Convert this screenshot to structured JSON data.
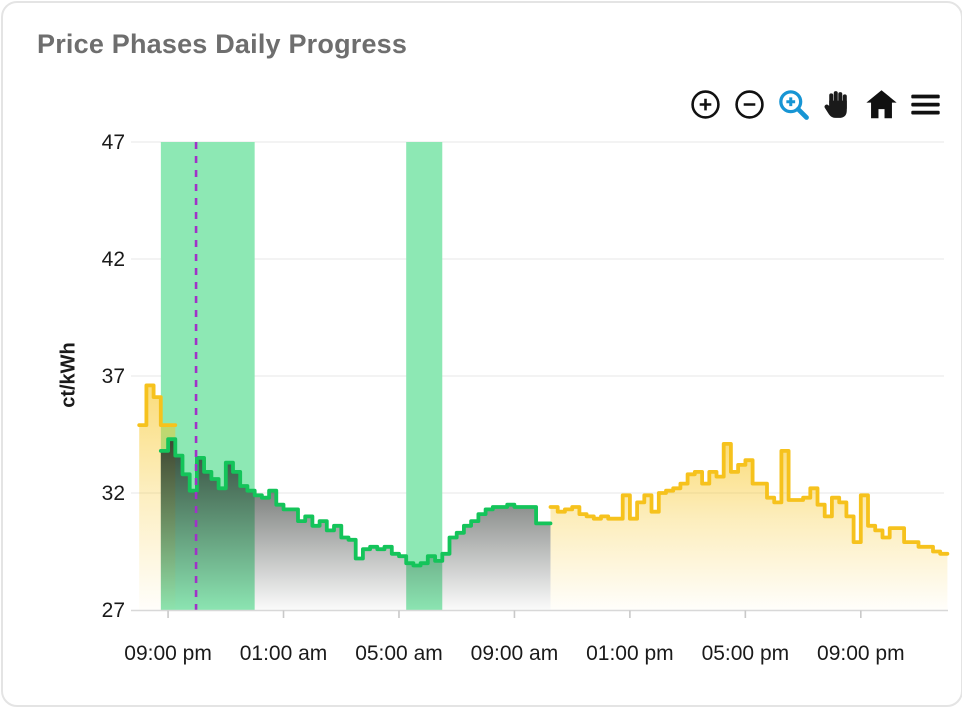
{
  "card": {
    "title": "Price Phases Daily Progress"
  },
  "toolbar": {
    "icon_color": "#111111",
    "active_color": "#1795d4",
    "items": [
      {
        "name": "zoom-in-icon"
      },
      {
        "name": "zoom-out-icon"
      },
      {
        "name": "box-zoom-icon",
        "active": true
      },
      {
        "name": "pan-hand-icon"
      },
      {
        "name": "home-reset-icon"
      },
      {
        "name": "menu-icon"
      }
    ]
  },
  "chart_data": {
    "type": "area",
    "title": "Price Phases Daily Progress",
    "xlabel": "",
    "ylabel": "ct/kWh",
    "ylim": [
      27,
      47
    ],
    "yticks": [
      27,
      32,
      37,
      42,
      47
    ],
    "x_range_hours": [
      0,
      28
    ],
    "x_start_time": "20:00",
    "step_minutes": 15,
    "grid": true,
    "xticks": [
      {
        "label": "09:00 pm",
        "hours": 1
      },
      {
        "label": "01:00 am",
        "hours": 5
      },
      {
        "label": "05:00 am",
        "hours": 9
      },
      {
        "label": "09:00 am",
        "hours": 13
      },
      {
        "label": "01:00 pm",
        "hours": 17
      },
      {
        "label": "05:00 pm",
        "hours": 21
      },
      {
        "label": "09:00 pm",
        "hours": 25
      }
    ],
    "colors": {
      "normal_line": "#f6c21d",
      "normal_fill": "247,197,34",
      "cheap_line": "#14c45a",
      "cheap_fill": "38,44,40",
      "band": "#8de8b4",
      "now_line": "#a032c8",
      "grid": "#efefef",
      "axis": "#d8d8d8",
      "tick": "#c9c9c9",
      "text": "#1a1a1a"
    },
    "bands": [
      {
        "name": "cheap-window-1",
        "from_time": "20:45",
        "to_time": "00:00",
        "from_hours": 0.75,
        "to_hours": 4
      },
      {
        "name": "cheap-window-2",
        "from_time": "05:15",
        "to_time": "06:30",
        "from_hours": 9.25,
        "to_hours": 10.5
      }
    ],
    "now_marker": {
      "time": "21:58",
      "hours": 1.97
    },
    "series": [
      {
        "name": "evening-price-normal",
        "phase": "normal",
        "start_time": "20:00",
        "start_hours": 0,
        "values": [
          34.9,
          36.6,
          36.1,
          34.9,
          34.9
        ]
      },
      {
        "name": "cheap-phase-price",
        "phase": "cheap",
        "start_time": "20:45",
        "start_hours": 0.75,
        "values": [
          33.8,
          34.3,
          33.6,
          32.8,
          32.1,
          33.5,
          32.9,
          32.6,
          32.2,
          33.3,
          32.9,
          32.3,
          32.1,
          31.9,
          31.8,
          32.1,
          31.5,
          31.3,
          31.3,
          30.8,
          31.0,
          30.6,
          30.8,
          30.4,
          30.6,
          30.1,
          30.0,
          29.2,
          29.6,
          29.7,
          29.6,
          29.7,
          29.4,
          29.3,
          29.0,
          28.9,
          29.0,
          29.3,
          29.1,
          29.4,
          30.1,
          30.3,
          30.6,
          30.8,
          31.1,
          31.3,
          31.4,
          31.4,
          31.5,
          31.4,
          31.4,
          31.4,
          30.7,
          30.7
        ]
      },
      {
        "name": "day-price-normal",
        "phase": "normal",
        "start_time": "10:15",
        "start_hours": 14.25,
        "values": [
          31.4,
          31.2,
          31.3,
          31.4,
          31.1,
          31.0,
          30.9,
          31.0,
          30.9,
          30.9,
          31.9,
          30.9,
          31.6,
          31.9,
          31.2,
          32.0,
          32.1,
          32.2,
          32.4,
          32.8,
          32.9,
          32.4,
          32.9,
          32.7,
          34.1,
          32.9,
          33.2,
          33.4,
          32.4,
          32.4,
          31.8,
          31.6,
          33.8,
          31.7,
          31.7,
          31.8,
          32.2,
          31.5,
          31.0,
          31.8,
          31.6,
          31.0,
          29.9,
          31.9,
          30.6,
          30.4,
          30.1,
          30.5,
          30.5,
          29.9,
          29.9,
          29.7,
          29.7,
          29.5,
          29.4
        ]
      }
    ]
  }
}
